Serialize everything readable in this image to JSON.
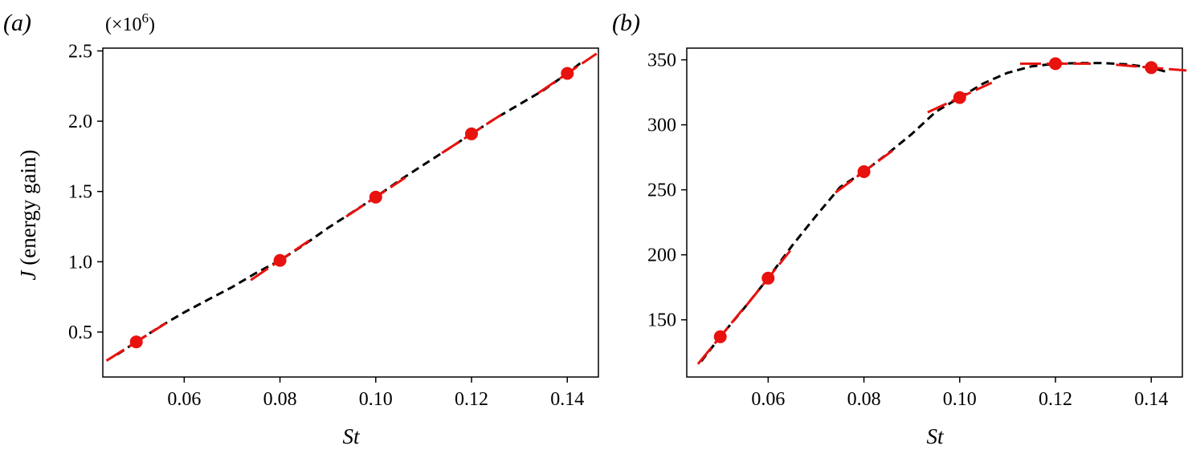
{
  "chart_data": [
    {
      "type": "line",
      "panel_label": "(a)",
      "multiplier": "(×10",
      "multiplier_exp": "6",
      "multiplier_close": ")",
      "xlabel": "St",
      "ylabel_italic": "J",
      "ylabel_rest": " (energy gain)",
      "xlim": [
        0.043,
        0.1465
      ],
      "ylim": [
        0.18,
        2.52
      ],
      "xticks": [
        0.06,
        0.08,
        0.1,
        0.12,
        0.14
      ],
      "xtick_labels": [
        "0.06",
        "0.08",
        "0.10",
        "0.12",
        "0.14"
      ],
      "yticks": [
        0.5,
        1.0,
        1.5,
        2.0,
        2.5
      ],
      "ytick_labels": [
        "0.5",
        "1.0",
        "1.5",
        "2.0",
        "2.5"
      ],
      "series": [
        {
          "style": "dashed-black",
          "x": [
            0.046,
            0.05,
            0.055,
            0.06,
            0.065,
            0.07,
            0.075,
            0.08,
            0.085,
            0.09,
            0.095,
            0.1,
            0.105,
            0.11,
            0.115,
            0.12,
            0.125,
            0.13,
            0.135,
            0.14,
            0.143
          ],
          "y": [
            0.34,
            0.43,
            0.54,
            0.64,
            0.73,
            0.82,
            0.92,
            1.01,
            1.12,
            1.24,
            1.35,
            1.46,
            1.58,
            1.69,
            1.8,
            1.91,
            2.02,
            2.12,
            2.22,
            2.34,
            2.42
          ]
        },
        {
          "style": "red-markers",
          "x": [
            0.05,
            0.08,
            0.1,
            0.12,
            0.14
          ],
          "y": [
            0.43,
            1.01,
            1.46,
            1.91,
            2.34
          ],
          "slopes": [
            21.5,
            23.0,
            22.5,
            22.0,
            23.0
          ]
        }
      ],
      "colors": {
        "curve": "#000000",
        "points": "#e8120e"
      },
      "grid": false
    },
    {
      "type": "line",
      "panel_label": "(b)",
      "xlabel": "St",
      "xlim": [
        0.043,
        0.1465
      ],
      "ylim": [
        106,
        359
      ],
      "xticks": [
        0.06,
        0.08,
        0.1,
        0.12,
        0.14
      ],
      "xtick_labels": [
        "0.06",
        "0.08",
        "0.10",
        "0.12",
        "0.14"
      ],
      "yticks": [
        150,
        200,
        250,
        300,
        350
      ],
      "ytick_labels": [
        "150",
        "200",
        "250",
        "300",
        "350"
      ],
      "series": [
        {
          "style": "dashed-black",
          "x": [
            0.046,
            0.05,
            0.055,
            0.06,
            0.065,
            0.07,
            0.075,
            0.08,
            0.085,
            0.09,
            0.095,
            0.1,
            0.105,
            0.11,
            0.115,
            0.12,
            0.125,
            0.13,
            0.135,
            0.14,
            0.143
          ],
          "y": [
            118,
            137,
            159,
            182,
            207,
            230,
            252,
            264,
            278,
            293,
            310,
            321,
            332,
            340,
            345,
            347,
            347.5,
            347.5,
            346.5,
            344,
            341
          ]
        },
        {
          "style": "red-markers",
          "x": [
            0.05,
            0.06,
            0.08,
            0.1,
            0.12,
            0.14
          ],
          "y": [
            137,
            182,
            264,
            321,
            347,
            344
          ],
          "slopes": [
            4500,
            4600,
            2700,
            1700,
            0,
            -300
          ]
        }
      ],
      "colors": {
        "curve": "#000000",
        "points": "#e8120e"
      },
      "grid": false
    }
  ]
}
